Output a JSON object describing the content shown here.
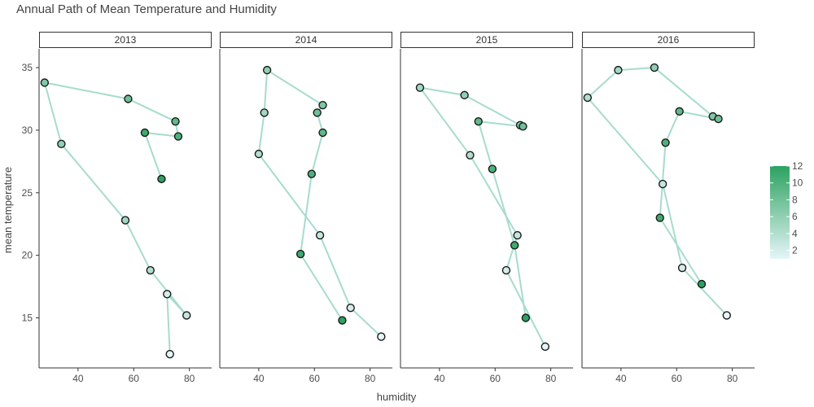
{
  "chart_data": {
    "type": "scatter",
    "title": "Annual Path of Mean Temperature and Humidity",
    "xlabel": "humidity",
    "ylabel": "mean temperature",
    "xlim": [
      26,
      88
    ],
    "ylim": [
      11,
      36.5
    ],
    "x_ticks": [
      40,
      60,
      80
    ],
    "y_ticks": [
      15,
      20,
      25,
      30,
      35
    ],
    "point_color_variable": "month",
    "color_scale": {
      "low": "#e5f5f9",
      "high": "#2ca25f",
      "min": 1,
      "max": 12
    },
    "path_color": "#a6dccd",
    "legend": {
      "position": "right",
      "ticks": [
        2,
        4,
        6,
        8,
        10,
        12
      ]
    },
    "facets": [
      {
        "label": "2013",
        "points": [
          {
            "month": 1,
            "x": 73,
            "y": 12.1
          },
          {
            "month": 2,
            "x": 72,
            "y": 16.9
          },
          {
            "month": 3,
            "x": 79,
            "y": 15.2
          },
          {
            "month": 4,
            "x": 66,
            "y": 18.8
          },
          {
            "month": 5,
            "x": 57,
            "y": 22.8
          },
          {
            "month": 6,
            "x": 34,
            "y": 28.9
          },
          {
            "month": 7,
            "x": 28,
            "y": 33.8
          },
          {
            "month": 8,
            "x": 58,
            "y": 32.5
          },
          {
            "month": 9,
            "x": 75,
            "y": 30.7
          },
          {
            "month": 10,
            "x": 76,
            "y": 29.5
          },
          {
            "month": 11,
            "x": 64,
            "y": 29.8
          },
          {
            "month": 12,
            "x": 70,
            "y": 26.1
          }
        ]
      },
      {
        "label": "2014",
        "points": [
          {
            "month": 1,
            "x": 84,
            "y": 13.5
          },
          {
            "month": 2,
            "x": 73,
            "y": 15.8
          },
          {
            "month": 3,
            "x": 62,
            "y": 21.6
          },
          {
            "month": 4,
            "x": 40,
            "y": 28.1
          },
          {
            "month": 5,
            "x": 42,
            "y": 31.4
          },
          {
            "month": 6,
            "x": 43,
            "y": 34.8
          },
          {
            "month": 7,
            "x": 63,
            "y": 32.0
          },
          {
            "month": 8,
            "x": 61,
            "y": 31.4
          },
          {
            "month": 9,
            "x": 63,
            "y": 29.8
          },
          {
            "month": 10,
            "x": 59,
            "y": 26.5
          },
          {
            "month": 11,
            "x": 55,
            "y": 20.1
          },
          {
            "month": 12,
            "x": 70,
            "y": 14.8
          }
        ]
      },
      {
        "label": "2015",
        "points": [
          {
            "month": 1,
            "x": 78,
            "y": 12.7
          },
          {
            "month": 2,
            "x": 64,
            "y": 18.8
          },
          {
            "month": 3,
            "x": 68,
            "y": 21.6
          },
          {
            "month": 4,
            "x": 51,
            "y": 28.0
          },
          {
            "month": 5,
            "x": 33,
            "y": 33.4
          },
          {
            "month": 6,
            "x": 49,
            "y": 32.8
          },
          {
            "month": 7,
            "x": 69,
            "y": 30.4
          },
          {
            "month": 8,
            "x": 70,
            "y": 30.3
          },
          {
            "month": 9,
            "x": 54,
            "y": 30.7
          },
          {
            "month": 10,
            "x": 59,
            "y": 26.9
          },
          {
            "month": 11,
            "x": 67,
            "y": 20.8
          },
          {
            "month": 12,
            "x": 71,
            "y": 15.0
          }
        ]
      },
      {
        "label": "2016",
        "points": [
          {
            "month": 1,
            "x": 78,
            "y": 15.2
          },
          {
            "month": 2,
            "x": 62,
            "y": 19.0
          },
          {
            "month": 3,
            "x": 55,
            "y": 25.7
          },
          {
            "month": 4,
            "x": 28,
            "y": 32.6
          },
          {
            "month": 5,
            "x": 39,
            "y": 34.8
          },
          {
            "month": 6,
            "x": 52,
            "y": 35.0
          },
          {
            "month": 7,
            "x": 73,
            "y": 31.1
          },
          {
            "month": 8,
            "x": 75,
            "y": 30.9
          },
          {
            "month": 9,
            "x": 61,
            "y": 31.5
          },
          {
            "month": 10,
            "x": 56,
            "y": 29.0
          },
          {
            "month": 11,
            "x": 54,
            "y": 23.0
          },
          {
            "month": 12,
            "x": 69,
            "y": 17.7
          }
        ]
      }
    ]
  }
}
